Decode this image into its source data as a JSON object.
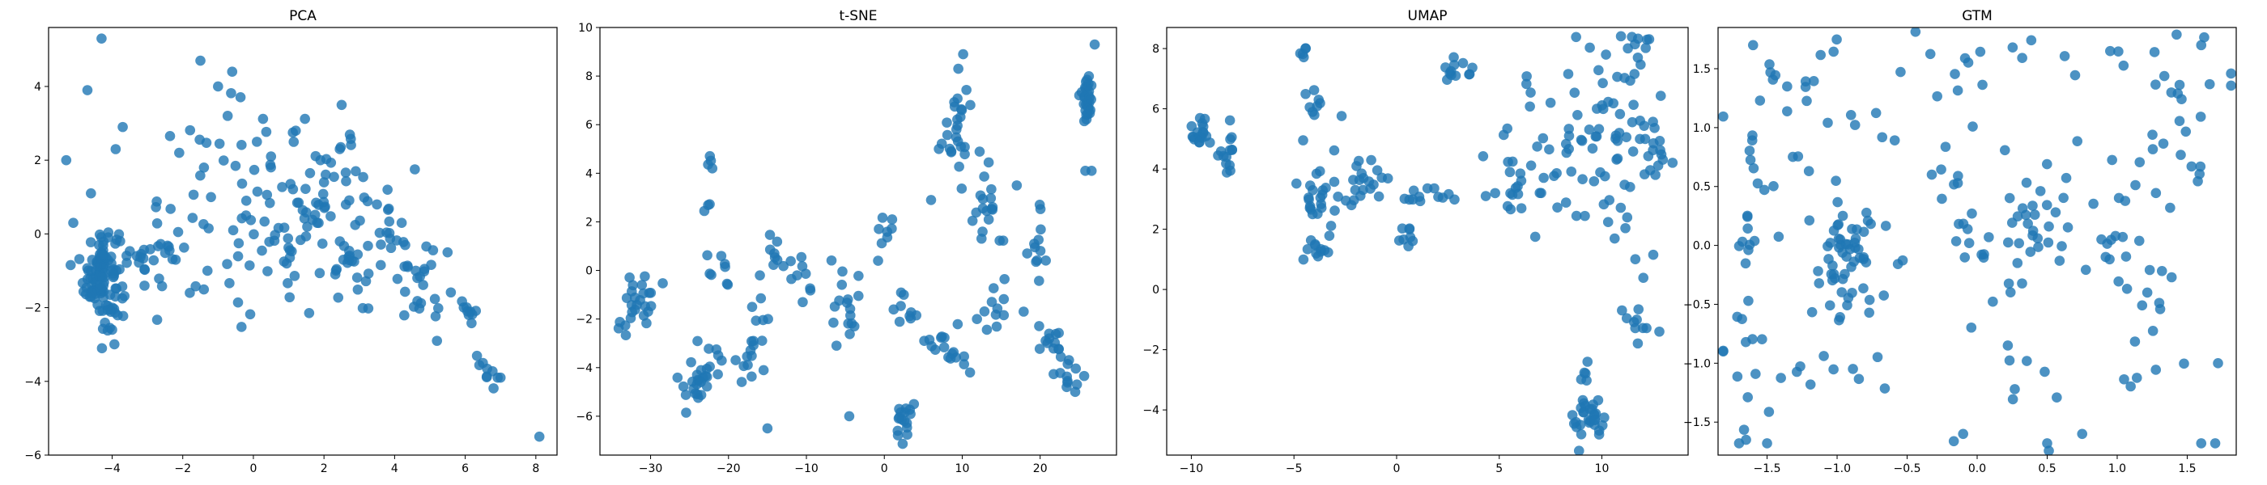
{
  "colors": {
    "point": "#1f77b4",
    "frame": "#000000",
    "background": "#ffffff"
  },
  "chart_data": [
    {
      "type": "scatter",
      "title": "PCA",
      "xlabel": "",
      "ylabel": "",
      "xlim": [
        -5.8,
        8.6
      ],
      "ylim": [
        -6.0,
        5.6
      ],
      "xticks": [
        -4,
        -2,
        0,
        2,
        4,
        6,
        8
      ],
      "yticks": [
        -6,
        -4,
        -2,
        0,
        2,
        4
      ],
      "clusters": [
        {
          "cx": -4.3,
          "cy": -1.1,
          "sx": 0.25,
          "sy": 0.7,
          "n": 110
        },
        {
          "cx": -3.0,
          "cy": -0.8,
          "sx": 0.6,
          "sy": 0.5,
          "n": 30
        },
        {
          "cx": -0.5,
          "cy": 0.8,
          "sx": 1.1,
          "sy": 1.3,
          "n": 45
        },
        {
          "cx": 1.5,
          "cy": 0.6,
          "sx": 1.0,
          "sy": 1.2,
          "n": 55
        },
        {
          "cx": 3.2,
          "cy": -0.4,
          "sx": 0.8,
          "sy": 1.0,
          "n": 50
        },
        {
          "cx": 5.0,
          "cy": -1.3,
          "sx": 0.6,
          "sy": 0.6,
          "n": 18
        },
        {
          "cx": 6.0,
          "cy": -1.8,
          "sx": 0.15,
          "sy": 0.3,
          "n": 8
        },
        {
          "cx": 6.7,
          "cy": -3.7,
          "sx": 0.3,
          "sy": 0.2,
          "n": 8
        }
      ],
      "points": [
        {
          "x": -4.3,
          "y": 5.3
        },
        {
          "x": -4.7,
          "y": 3.9
        },
        {
          "x": -5.3,
          "y": 2.0
        },
        {
          "x": -1.5,
          "y": 4.7
        },
        {
          "x": -0.6,
          "y": 4.4
        },
        {
          "x": -1.0,
          "y": 4.0
        },
        {
          "x": 2.5,
          "y": 3.5
        },
        {
          "x": 8.1,
          "y": -5.5
        },
        {
          "x": 5.2,
          "y": -2.9
        },
        {
          "x": -3.7,
          "y": 2.9
        },
        {
          "x": -3.9,
          "y": 2.3
        },
        {
          "x": -2.1,
          "y": 2.2
        },
        {
          "x": -1.4,
          "y": 1.8
        },
        {
          "x": -1.2,
          "y": 1.0
        },
        {
          "x": -0.2,
          "y": 0.9
        },
        {
          "x": 0.1,
          "y": 2.5
        },
        {
          "x": 1.2,
          "y": 2.8
        },
        {
          "x": 1.9,
          "y": 2.0
        },
        {
          "x": 2.9,
          "y": 1.7
        },
        {
          "x": 3.8,
          "y": 1.2
        },
        {
          "x": 4.2,
          "y": 0.3
        },
        {
          "x": -1.8,
          "y": -1.6
        },
        {
          "x": -2.2,
          "y": -0.7
        },
        {
          "x": -1.3,
          "y": -1.0
        },
        {
          "x": -4.6,
          "y": 1.1
        },
        {
          "x": -5.1,
          "y": 0.3
        },
        {
          "x": -4.0,
          "y": -2.6
        },
        {
          "x": -3.3,
          "y": -0.6
        },
        {
          "x": 0.5,
          "y": 2.1
        },
        {
          "x": 2.0,
          "y": 1.4
        },
        {
          "x": 3.5,
          "y": 0.8
        },
        {
          "x": 4.6,
          "y": -1.0
        },
        {
          "x": 5.5,
          "y": -0.5
        },
        {
          "x": 6.1,
          "y": -2.2
        },
        {
          "x": 6.5,
          "y": -3.5
        },
        {
          "x": 7.0,
          "y": -3.9
        }
      ]
    },
    {
      "type": "scatter",
      "title": "t-SNE",
      "xlabel": "",
      "ylabel": "",
      "xlim": [
        -36.5,
        29.8
      ],
      "ylim": [
        -7.6,
        10.0
      ],
      "xticks": [
        -30,
        -20,
        -10,
        0,
        10,
        20
      ],
      "yticks": [
        -6,
        -4,
        -2,
        0,
        2,
        4,
        6,
        8,
        10
      ],
      "clusters": [
        {
          "cx": -31.5,
          "cy": -1.2,
          "sx": 1.2,
          "sy": 0.6,
          "n": 22
        },
        {
          "cx": -33.5,
          "cy": -2.2,
          "sx": 0.3,
          "sy": 0.3,
          "n": 4
        },
        {
          "cx": -24.0,
          "cy": -4.8,
          "sx": 0.8,
          "sy": 0.35,
          "n": 16
        },
        {
          "cx": -22.0,
          "cy": -3.8,
          "sx": 1.8,
          "sy": 0.6,
          "n": 14
        },
        {
          "cx": -23.0,
          "cy": 2.6,
          "sx": 0.3,
          "sy": 0.3,
          "n": 3
        },
        {
          "cx": -22.4,
          "cy": 4.4,
          "sx": 0.2,
          "sy": 0.2,
          "n": 4
        },
        {
          "cx": -21.0,
          "cy": 0.5,
          "sx": 0.8,
          "sy": 1.0,
          "n": 8
        },
        {
          "cx": -17.0,
          "cy": -3.2,
          "sx": 1.6,
          "sy": 0.8,
          "n": 16
        },
        {
          "cx": -14.0,
          "cy": 0.5,
          "sx": 0.6,
          "sy": 1.0,
          "n": 8
        },
        {
          "cx": -11.0,
          "cy": 0.0,
          "sx": 1.5,
          "sy": 0.5,
          "n": 12
        },
        {
          "cx": -5.0,
          "cy": -1.5,
          "sx": 1.4,
          "sy": 1.0,
          "n": 16
        },
        {
          "cx": 0.0,
          "cy": 1.5,
          "sx": 0.6,
          "sy": 0.5,
          "n": 6
        },
        {
          "cx": 2.5,
          "cy": -6.3,
          "sx": 0.5,
          "sy": 0.4,
          "n": 16
        },
        {
          "cx": 3.0,
          "cy": -1.8,
          "sx": 1.2,
          "sy": 0.7,
          "n": 8
        },
        {
          "cx": 8.0,
          "cy": -3.2,
          "sx": 1.3,
          "sy": 0.4,
          "n": 16
        },
        {
          "cx": 9.0,
          "cy": 6.2,
          "sx": 0.9,
          "sy": 1.0,
          "n": 24
        },
        {
          "cx": 13.0,
          "cy": 2.8,
          "sx": 1.5,
          "sy": 1.0,
          "n": 20
        },
        {
          "cx": 15.0,
          "cy": -1.5,
          "sx": 1.4,
          "sy": 0.6,
          "n": 12
        },
        {
          "cx": 19.5,
          "cy": 1.0,
          "sx": 0.8,
          "sy": 1.0,
          "n": 12
        },
        {
          "cx": 21.0,
          "cy": -2.9,
          "sx": 1.2,
          "sy": 0.4,
          "n": 12
        },
        {
          "cx": 23.5,
          "cy": -4.2,
          "sx": 0.8,
          "sy": 0.6,
          "n": 12
        },
        {
          "cx": 26.0,
          "cy": 7.0,
          "sx": 0.6,
          "sy": 0.5,
          "n": 30
        }
      ],
      "points": [
        {
          "x": 27.0,
          "y": 9.3
        },
        {
          "x": 25.8,
          "y": 4.1
        },
        {
          "x": 26.6,
          "y": 4.1
        },
        {
          "x": 9.5,
          "y": 8.3
        },
        {
          "x": 7.0,
          "y": 5.0
        },
        {
          "x": 6.0,
          "y": 2.9
        },
        {
          "x": -15.0,
          "y": -6.5
        },
        {
          "x": -4.5,
          "y": -6.0
        },
        {
          "x": 3.8,
          "y": -5.5
        },
        {
          "x": 1.0,
          "y": 2.1
        },
        {
          "x": -0.8,
          "y": 0.4
        },
        {
          "x": 2.5,
          "y": -1.0
        },
        {
          "x": 17.0,
          "y": 3.5
        },
        {
          "x": 24.5,
          "y": -5.0
        },
        {
          "x": 11.0,
          "y": -4.2
        }
      ]
    },
    {
      "type": "scatter",
      "title": "UMAP",
      "xlabel": "",
      "ylabel": "",
      "xlim": [
        -11.2,
        14.2
      ],
      "ylim": [
        -5.5,
        8.7
      ],
      "xticks": [
        -10,
        -5,
        0,
        5,
        10
      ],
      "yticks": [
        -4,
        -2,
        0,
        2,
        4,
        6,
        8
      ],
      "clusters": [
        {
          "cx": -9.5,
          "cy": 5.2,
          "sx": 0.35,
          "sy": 0.35,
          "n": 18
        },
        {
          "cx": -8.1,
          "cy": 4.7,
          "sx": 0.3,
          "sy": 0.45,
          "n": 14
        },
        {
          "cx": -4.5,
          "cy": 7.9,
          "sx": 0.1,
          "sy": 0.1,
          "n": 5
        },
        {
          "cx": -4.0,
          "cy": 6.1,
          "sx": 0.3,
          "sy": 0.35,
          "n": 8
        },
        {
          "cx": -3.8,
          "cy": 3.2,
          "sx": 0.6,
          "sy": 1.0,
          "n": 30
        },
        {
          "cx": -4.0,
          "cy": 1.2,
          "sx": 0.3,
          "sy": 0.15,
          "n": 8
        },
        {
          "cx": -1.5,
          "cy": 3.4,
          "sx": 0.8,
          "sy": 0.5,
          "n": 18
        },
        {
          "cx": 1.5,
          "cy": 3.1,
          "sx": 0.6,
          "sy": 0.15,
          "n": 12
        },
        {
          "cx": 0.6,
          "cy": 1.8,
          "sx": 0.2,
          "sy": 0.3,
          "n": 8
        },
        {
          "cx": 3.0,
          "cy": 7.2,
          "sx": 0.35,
          "sy": 0.3,
          "n": 12
        },
        {
          "cx": 5.5,
          "cy": 3.5,
          "sx": 0.6,
          "sy": 0.7,
          "n": 18
        },
        {
          "cx": 8.0,
          "cy": 4.6,
          "sx": 1.2,
          "sy": 1.3,
          "n": 30
        },
        {
          "cx": 10.5,
          "cy": 4.5,
          "sx": 1.2,
          "sy": 2.0,
          "n": 45
        },
        {
          "cx": 11.8,
          "cy": 7.5,
          "sx": 0.4,
          "sy": 0.6,
          "n": 14
        },
        {
          "cx": 12.8,
          "cy": 4.5,
          "sx": 0.3,
          "sy": 0.6,
          "n": 12
        },
        {
          "cx": 11.5,
          "cy": -0.8,
          "sx": 0.6,
          "sy": 0.6,
          "n": 10
        },
        {
          "cx": 9.4,
          "cy": -4.3,
          "sx": 0.5,
          "sy": 0.35,
          "n": 30
        },
        {
          "cx": 9.2,
          "cy": -2.8,
          "sx": 0.2,
          "sy": 0.2,
          "n": 4
        }
      ],
      "points": [
        {
          "x": 9.3,
          "y": -2.4
        },
        {
          "x": 12.8,
          "y": -1.4
        },
        {
          "x": -2.2,
          "y": 2.8
        },
        {
          "x": 4.8,
          "y": 3.2
        },
        {
          "x": 7.5,
          "y": 6.2
        },
        {
          "x": 10.2,
          "y": 7.8
        }
      ]
    },
    {
      "type": "scatter",
      "title": "GTM",
      "xlabel": "",
      "ylabel": "",
      "xlim": [
        -1.85,
        1.85
      ],
      "ylim": [
        -1.78,
        1.85
      ],
      "xticks": [
        -1.5,
        -1.0,
        -0.5,
        0.0,
        0.5,
        1.0,
        1.5
      ],
      "yticks": [
        -1.5,
        -1.0,
        -0.5,
        0.0,
        0.5,
        1.0,
        1.5
      ],
      "clusters": [
        {
          "cx": -0.95,
          "cy": -0.15,
          "sx": 0.15,
          "sy": 0.25,
          "n": 55
        },
        {
          "cx": -1.3,
          "cy": 0.6,
          "sx": 0.3,
          "sy": 0.5,
          "n": 20
        },
        {
          "cx": -1.5,
          "cy": -0.9,
          "sx": 0.2,
          "sy": 0.35,
          "n": 16
        },
        {
          "cx": -1.65,
          "cy": 0.5,
          "sx": 0.04,
          "sy": 0.6,
          "n": 14
        },
        {
          "cx": 0.45,
          "cy": 0.1,
          "sx": 0.3,
          "sy": 0.35,
          "n": 50
        },
        {
          "cx": 0.3,
          "cy": -1.3,
          "sx": 0.3,
          "sy": 0.25,
          "n": 10
        },
        {
          "cx": 1.0,
          "cy": 0.0,
          "sx": 0.2,
          "sy": 0.3,
          "n": 10
        },
        {
          "cx": 1.35,
          "cy": -0.4,
          "sx": 0.2,
          "sy": 0.5,
          "n": 14
        },
        {
          "cx": 1.55,
          "cy": 1.2,
          "sx": 0.15,
          "sy": 0.35,
          "n": 14
        },
        {
          "cx": 0.3,
          "cy": 1.55,
          "sx": 0.4,
          "sy": 0.15,
          "n": 14
        },
        {
          "cx": -0.5,
          "cy": 1.3,
          "sx": 0.3,
          "sy": 0.3,
          "n": 10
        },
        {
          "cx": -1.2,
          "cy": 1.55,
          "sx": 0.25,
          "sy": 0.15,
          "n": 8
        },
        {
          "cx": -0.9,
          "cy": -1.1,
          "sx": 0.3,
          "sy": 0.15,
          "n": 8
        },
        {
          "cx": -0.15,
          "cy": 0.55,
          "sx": 0.1,
          "sy": 0.5,
          "n": 8
        },
        {
          "cx": 1.3,
          "cy": 0.5,
          "sx": 0.25,
          "sy": 0.3,
          "n": 10
        }
      ],
      "points": [
        {
          "x": -1.7,
          "y": -1.68
        },
        {
          "x": -1.65,
          "y": -1.65
        },
        {
          "x": -1.5,
          "y": -1.68
        },
        {
          "x": 0.5,
          "y": -1.68
        },
        {
          "x": 0.75,
          "y": -1.6
        },
        {
          "x": 1.6,
          "y": -1.68
        },
        {
          "x": 1.7,
          "y": -1.68
        },
        {
          "x": 1.72,
          "y": -1.0
        },
        {
          "x": 1.6,
          "y": 1.7
        },
        {
          "x": -1.6,
          "y": 1.7
        },
        {
          "x": 0.95,
          "y": 1.65
        },
        {
          "x": -0.1,
          "y": -1.6
        }
      ]
    }
  ]
}
